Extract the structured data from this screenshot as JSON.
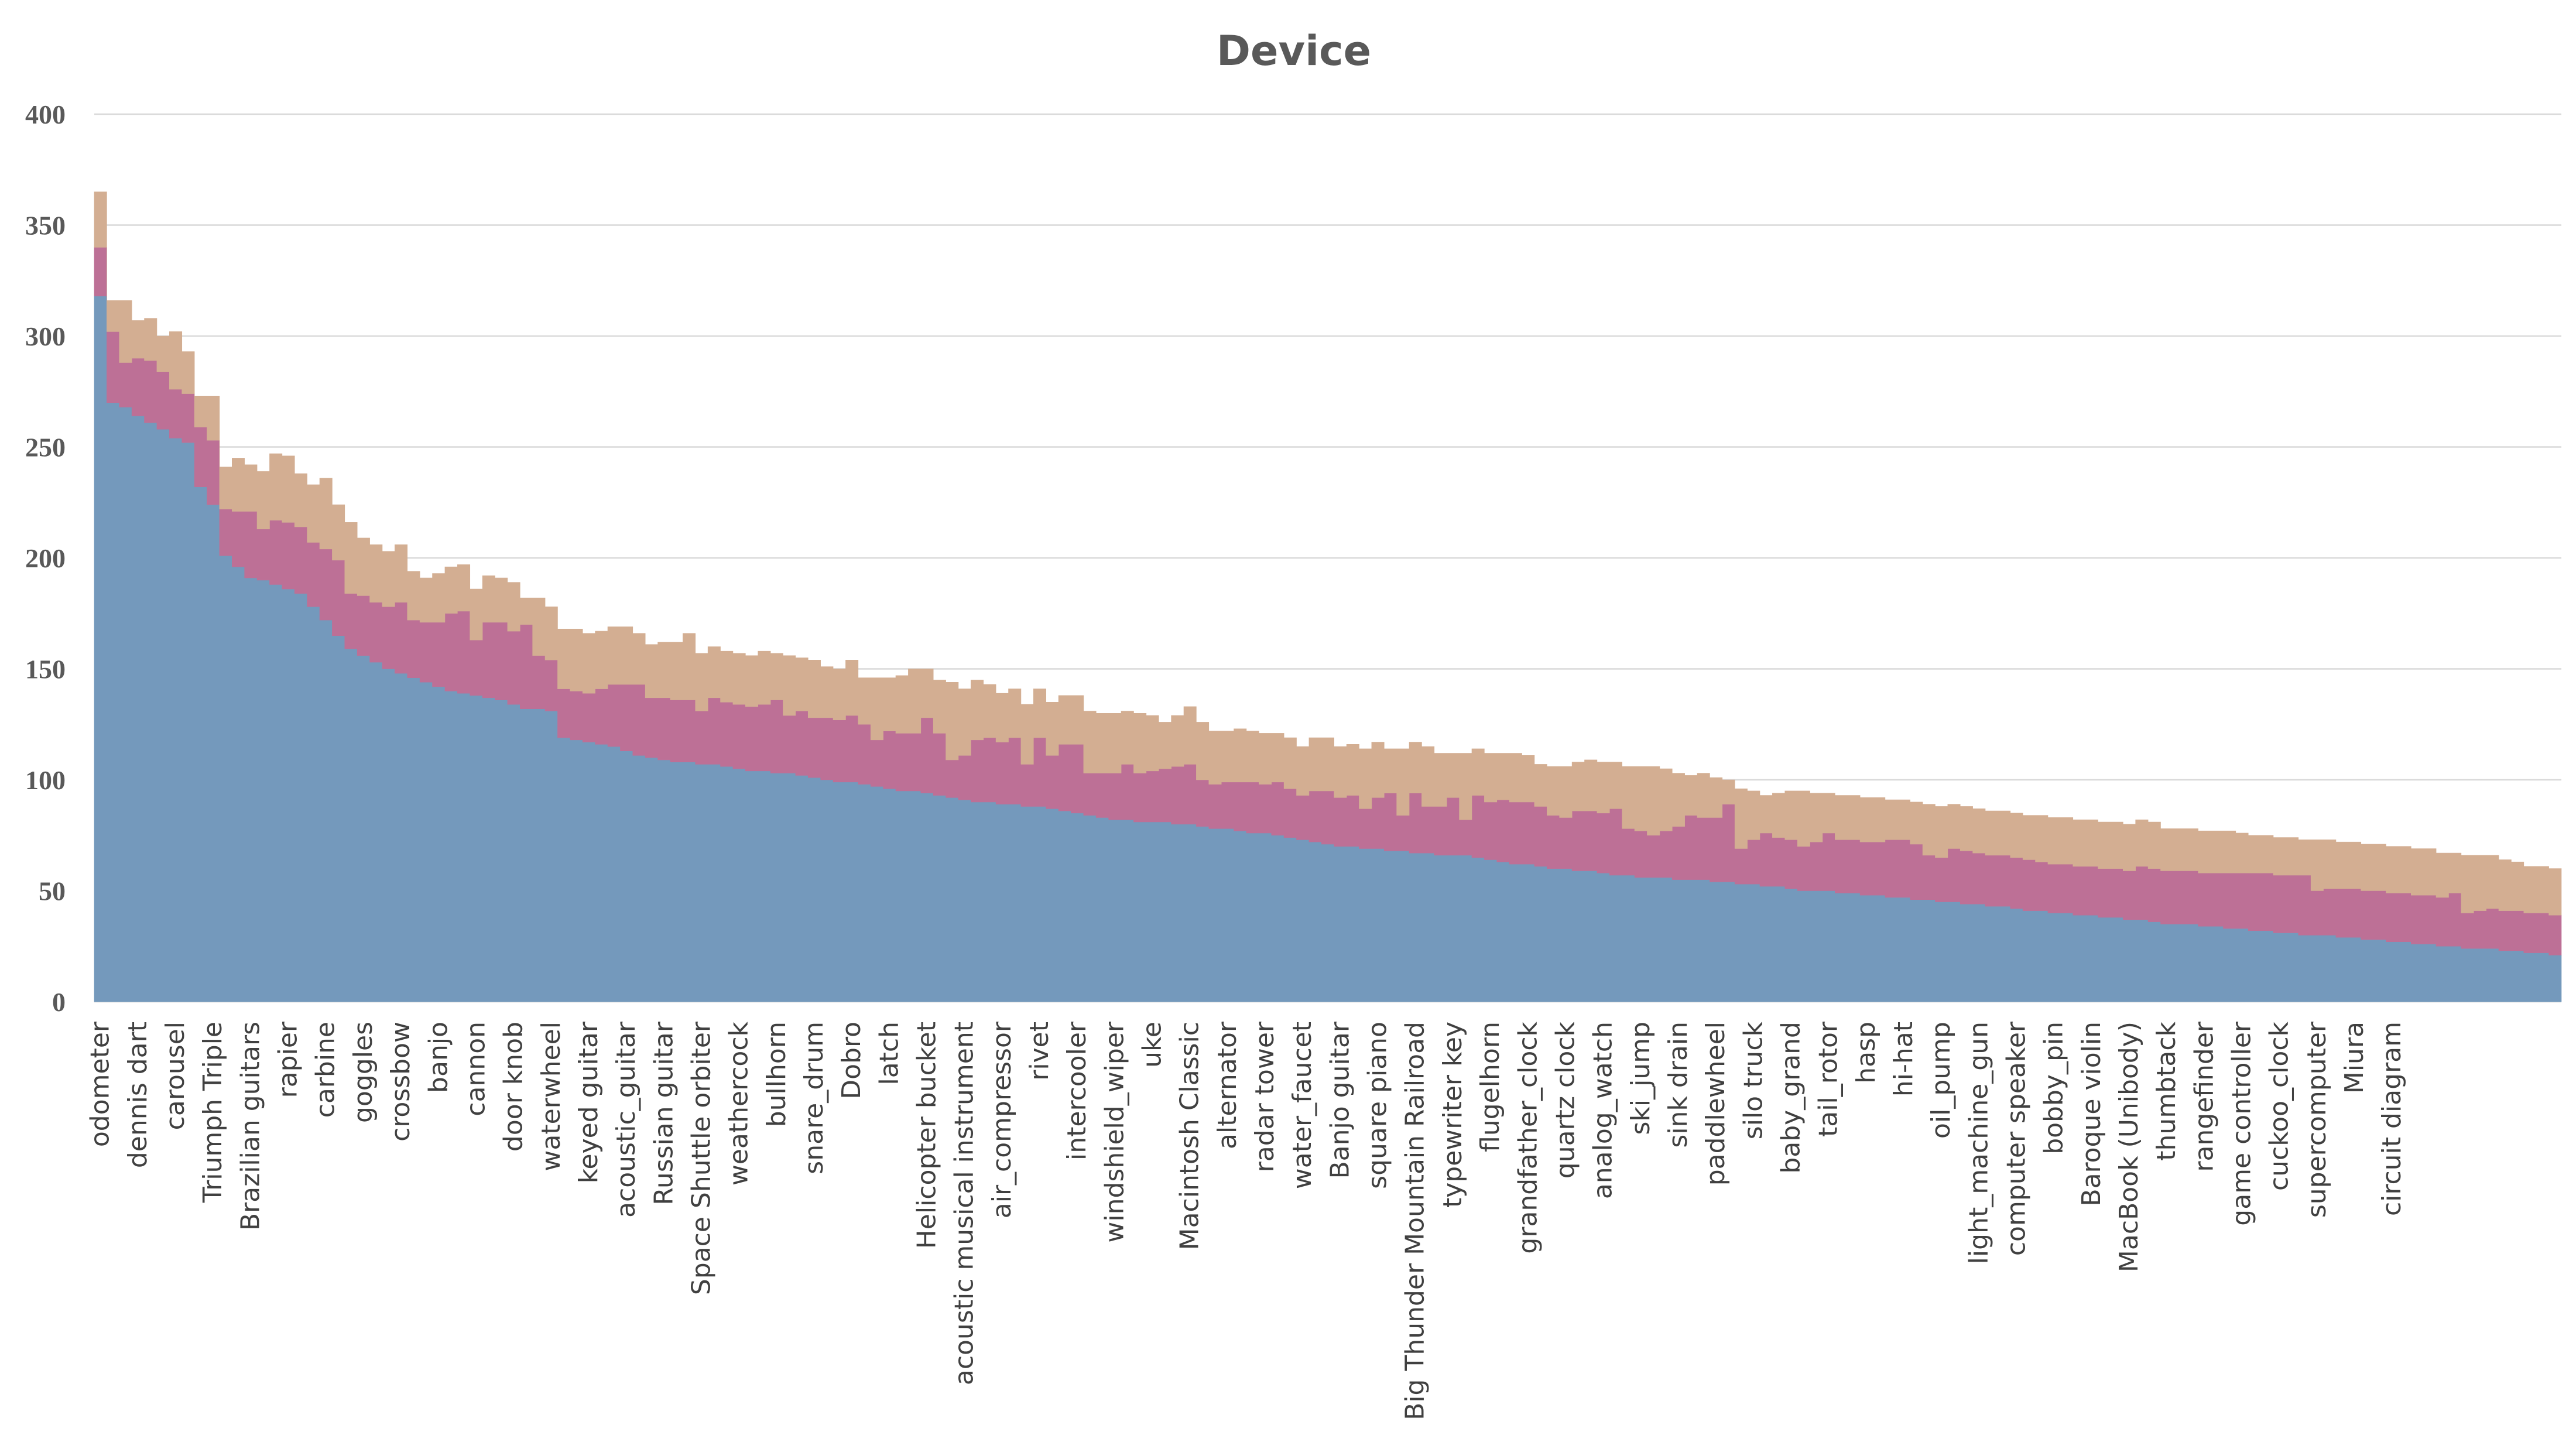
{
  "chart_data": {
    "type": "area",
    "stacked": true,
    "title": "Device",
    "xlabel": "",
    "ylabel": "",
    "ylim": [
      0,
      400
    ],
    "yticks": [
      0,
      50,
      100,
      150,
      200,
      250,
      300,
      350,
      400
    ],
    "grid": true,
    "legend": "none",
    "n_points": 197,
    "x_tick_labels": [
      "odometer",
      "dennis dart",
      "carousel",
      "Triumph Triple",
      "Brazilian guitars",
      "rapier",
      "carbine",
      "goggles",
      "crossbow",
      "banjo",
      "cannon",
      "door knob",
      "waterwheel",
      "keyed guitar",
      "acoustic_guitar",
      "Russian guitar",
      "Space Shuttle orbiter",
      "weathercock",
      "bullhorn",
      "snare_drum",
      "Dobro",
      "latch",
      "Helicopter bucket",
      "acoustic musical instrument",
      "air_compressor",
      "rivet",
      "intercooler",
      "windshield_wiper",
      "uke",
      "Macintosh Classic",
      "alternator",
      "radar tower",
      "water_faucet",
      "Banjo guitar",
      "square piano",
      "Big Thunder Mountain Railroad",
      "typewriter key",
      "flugelhorn",
      "grandfather_clock",
      "quartz clock",
      "analog_watch",
      "ski_jump",
      "sink drain",
      "paddlewheel",
      "silo truck",
      "baby_grand",
      "tail_rotor",
      "hasp",
      "hi-hat",
      "oil_pump",
      "light_machine_gun",
      "computer speaker",
      "bobby_pin",
      "Baroque violin",
      "MacBook (Unibody)",
      "thumbtack",
      "rangefinder",
      "game controller",
      "cuckoo_clock",
      "supercomputer",
      "Miura",
      "circuit diagram"
    ],
    "series_colors": [
      "#7499bc",
      "#bd7096",
      "#d3ae92"
    ],
    "series": [
      {
        "values": [
          318,
          270,
          268,
          264,
          261,
          258,
          254,
          252,
          232,
          224,
          201,
          196,
          191,
          190,
          188,
          186,
          184,
          178,
          172,
          165,
          159,
          156,
          153,
          150,
          148,
          146,
          144,
          142,
          140,
          139,
          138,
          137,
          136,
          134,
          132,
          132,
          131,
          119,
          118,
          117,
          116,
          115,
          113,
          111,
          110,
          109,
          108,
          108,
          107,
          107,
          106,
          105,
          104,
          104,
          103,
          103,
          102,
          101,
          100,
          99,
          99,
          98,
          97,
          96,
          95,
          95,
          94,
          93,
          92,
          91,
          90,
          90,
          89,
          89,
          88,
          88,
          87,
          86,
          85,
          84,
          83,
          82,
          82,
          81,
          81,
          81,
          80,
          80,
          79,
          78,
          78,
          77,
          76,
          76,
          75,
          74,
          73,
          72,
          71,
          70,
          70,
          69,
          69,
          68,
          68,
          67,
          67,
          66,
          66,
          66,
          65,
          64,
          63,
          62,
          62,
          61,
          60,
          60,
          59,
          59,
          58,
          57,
          57,
          56,
          56,
          56,
          55,
          55,
          55,
          54,
          54,
          53,
          53,
          52,
          52,
          51,
          50,
          50,
          50,
          49,
          49,
          48,
          48,
          47,
          47,
          46,
          46,
          45,
          45,
          44,
          44,
          43,
          43,
          42,
          41,
          41,
          40,
          40,
          39,
          39,
          38,
          38,
          37,
          37,
          36,
          35,
          35,
          35,
          34,
          34,
          33,
          33,
          32,
          32,
          31,
          31,
          30,
          30,
          30,
          29,
          29,
          28,
          28,
          27,
          27,
          26,
          26,
          25,
          25,
          24,
          24,
          24,
          23,
          23,
          22,
          22,
          21
        ],
        "note": "estimated from gridlines"
      },
      {
        "values": [
          22,
          32,
          20,
          26,
          28,
          26,
          22,
          22,
          27,
          29,
          21,
          25,
          30,
          23,
          29,
          30,
          30,
          29,
          32,
          34,
          25,
          27,
          27,
          28,
          32,
          26,
          27,
          29,
          35,
          37,
          25,
          34,
          35,
          33,
          38,
          24,
          23,
          22,
          22,
          22,
          25,
          28,
          30,
          32,
          27,
          28,
          28,
          28,
          24,
          30,
          29,
          29,
          29,
          30,
          33,
          26,
          29,
          27,
          28,
          28,
          30,
          27,
          21,
          26,
          26,
          26,
          34,
          28,
          17,
          20,
          28,
          29,
          28,
          30,
          19,
          31,
          24,
          30,
          31,
          19,
          20,
          21,
          25,
          22,
          23,
          24,
          26,
          27,
          21,
          20,
          21,
          22,
          23,
          22,
          24,
          22,
          20,
          23,
          24,
          22,
          23,
          18,
          23,
          26,
          16,
          27,
          21,
          22,
          26,
          16,
          28,
          26,
          28,
          28,
          28,
          27,
          24,
          23,
          27,
          27,
          27,
          30,
          21,
          21,
          19,
          21,
          24,
          29,
          28,
          29,
          35,
          16,
          20,
          24,
          22,
          22,
          20,
          22,
          26,
          24,
          24,
          24,
          24,
          26,
          26,
          25,
          20,
          20,
          24,
          24,
          23,
          23,
          23,
          23,
          23,
          22,
          22,
          22,
          22,
          22,
          22,
          22,
          22,
          24,
          24,
          24,
          24,
          24,
          24,
          24,
          25,
          25,
          26,
          26,
          26,
          26,
          27,
          20,
          21,
          22,
          22,
          22,
          22,
          22,
          22,
          22,
          22,
          22,
          24,
          16,
          17,
          18,
          18,
          18,
          18,
          18,
          18
        ],
        "note": "estimated from gridlines"
      },
      {
        "values": [
          25,
          14,
          28,
          17,
          19,
          16,
          26,
          19,
          14,
          20,
          19,
          24,
          21,
          26,
          30,
          30,
          24,
          26,
          32,
          25,
          32,
          26,
          26,
          25,
          26,
          22,
          20,
          22,
          21,
          21,
          23,
          21,
          20,
          22,
          12,
          26,
          24,
          27,
          28,
          27,
          26,
          26,
          26,
          23,
          24,
          25,
          26,
          30,
          26,
          23,
          23,
          23,
          23,
          24,
          21,
          27,
          24,
          26,
          23,
          23,
          25,
          21,
          28,
          24,
          26,
          29,
          22,
          24,
          35,
          30,
          27,
          24,
          22,
          22,
          27,
          22,
          24,
          22,
          22,
          28,
          27,
          27,
          24,
          27,
          25,
          21,
          23,
          26,
          26,
          24,
          23,
          24,
          23,
          23,
          22,
          23,
          22,
          24,
          24,
          23,
          23,
          27,
          25,
          20,
          30,
          23,
          27,
          24,
          20,
          30,
          21,
          22,
          21,
          22,
          21,
          19,
          22,
          23,
          22,
          23,
          23,
          21,
          28,
          29,
          31,
          28,
          24,
          18,
          20,
          18,
          11,
          27,
          22,
          17,
          20,
          22,
          25,
          22,
          18,
          20,
          20,
          20,
          20,
          18,
          18,
          19,
          23,
          23,
          20,
          20,
          20,
          20,
          20,
          20,
          20,
          21,
          21,
          21,
          21,
          21,
          21,
          21,
          21,
          21,
          21,
          19,
          19,
          19,
          19,
          19,
          19,
          18,
          17,
          17,
          17,
          17,
          16,
          23,
          22,
          21,
          21,
          21,
          21,
          21,
          21,
          21,
          21,
          20,
          18,
          26,
          25,
          24,
          23,
          22,
          21,
          21,
          21
        ],
        "note": "estimated from gridlines"
      }
    ]
  }
}
